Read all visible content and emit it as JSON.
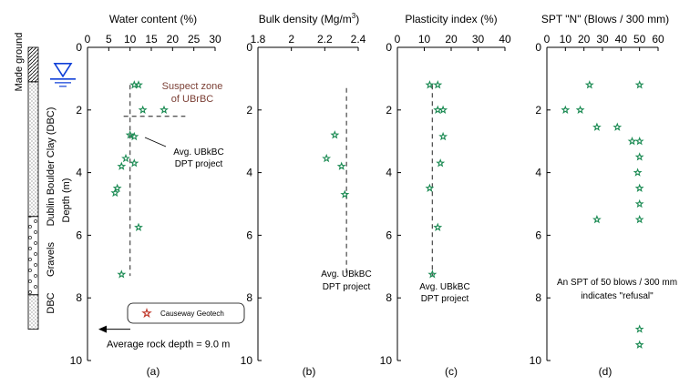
{
  "colors": {
    "ink": "#000000",
    "star": "#1a8a52",
    "legend_star": "#c0392b",
    "annotation": "#7b3f35",
    "water_table": "#1040d8"
  },
  "strata": [
    {
      "label": "Made ground",
      "from_m": 0,
      "to_m": 1.1,
      "pattern": "hatch"
    },
    {
      "label": "Dublin Boulder Clay (DBC)",
      "from_m": 1.1,
      "to_m": 5.4,
      "pattern": "dots"
    },
    {
      "label": "Gravels",
      "from_m": 5.4,
      "to_m": 7.9,
      "pattern": "circles"
    },
    {
      "label": "DBC",
      "from_m": 7.9,
      "to_m": 9.0,
      "pattern": "dots"
    }
  ],
  "depth_label": "Depth (m)",
  "water_table_depth_m": 1.1,
  "legend": {
    "label": "Causeway Geotech"
  },
  "rock_depth": {
    "text": "Average rock depth = 9.0 m",
    "depth_m": 9.0
  },
  "chart_data": [
    {
      "type": "scatter",
      "id": "a",
      "panel_label": "(a)",
      "title": "Water content (%)",
      "xlim": [
        0,
        30
      ],
      "xticks": [
        0,
        5,
        10,
        15,
        20,
        25,
        30
      ],
      "ylim": [
        0,
        10
      ],
      "yticks": [
        0,
        2,
        4,
        6,
        8,
        10
      ],
      "x": [
        12,
        11,
        13,
        18,
        10,
        11,
        8,
        9,
        11,
        7,
        6.5,
        12,
        8
      ],
      "y": [
        1.2,
        1.2,
        2.0,
        2.0,
        2.8,
        2.85,
        3.8,
        3.55,
        3.7,
        4.5,
        4.65,
        5.75,
        7.25
      ],
      "reference_lines": [
        {
          "label": "Avg. UBkBC DPT project",
          "x": 10,
          "from_y": 1.2,
          "to_y": 7.3
        },
        {
          "label": "Suspect zone of UBrBC",
          "y": 2.2,
          "from_x": 8.5,
          "to_x": 23
        }
      ],
      "annotations": [
        "Suspect zone",
        "of UBrBC",
        "Avg. UBkBC",
        "DPT project"
      ]
    },
    {
      "type": "scatter",
      "id": "b",
      "panel_label": "(b)",
      "title": "Bulk density (Mg/m",
      "title_superscript": "3",
      "title_close": ")",
      "xlim": [
        1.8,
        2.4
      ],
      "xticks": [
        "1.8",
        "2",
        "2.2",
        "2.4"
      ],
      "ylim": [
        0,
        10
      ],
      "yticks": [
        0,
        2,
        4,
        6,
        8,
        10
      ],
      "x": [
        2.26,
        2.21,
        2.3,
        2.32
      ],
      "y": [
        2.8,
        3.55,
        3.8,
        4.7
      ],
      "reference_lines": [
        {
          "label": "Avg. UBkBC DPT project",
          "x": 2.33,
          "from_y": 1.3,
          "to_y": 7.3
        }
      ],
      "annotations": [
        "Avg. UBkBC",
        "DPT project"
      ]
    },
    {
      "type": "scatter",
      "id": "c",
      "panel_label": "(c)",
      "title": "Plasticity index (%)",
      "xlim": [
        0,
        40
      ],
      "xticks": [
        0,
        10,
        20,
        30,
        40
      ],
      "ylim": [
        0,
        10
      ],
      "yticks": [
        0,
        2,
        4,
        6,
        8,
        10
      ],
      "x": [
        12,
        15,
        15,
        17,
        17,
        16,
        12,
        15,
        13
      ],
      "y": [
        1.2,
        1.2,
        2.0,
        2.0,
        2.85,
        3.7,
        4.5,
        5.75,
        7.25
      ],
      "reference_lines": [
        {
          "label": "Avg. UBkBC DPT project",
          "x": 13,
          "from_y": 1.2,
          "to_y": 7.3
        }
      ],
      "annotations": [
        "Avg. UBkBC",
        "DPT project"
      ]
    },
    {
      "type": "scatter",
      "id": "d",
      "panel_label": "(d)",
      "title": "SPT \"N\" (Blows / 300 mm)",
      "xlim": [
        0,
        60
      ],
      "xticks": [
        0,
        10,
        20,
        30,
        40,
        50,
        60
      ],
      "ylim": [
        0,
        10
      ],
      "yticks": [
        0,
        2,
        4,
        6,
        8,
        10
      ],
      "x": [
        23,
        50,
        10,
        18,
        27,
        38,
        46,
        50,
        50,
        49,
        50,
        50,
        27,
        50,
        50,
        50
      ],
      "y": [
        1.2,
        1.2,
        2.0,
        2.0,
        2.55,
        2.55,
        3.0,
        3.0,
        3.5,
        4.0,
        4.5,
        5.0,
        5.5,
        5.5,
        9.0,
        9.5
      ],
      "annotations": [
        "An SPT of 50 blows / 300 mm",
        "indicates \"refusal\""
      ]
    }
  ]
}
